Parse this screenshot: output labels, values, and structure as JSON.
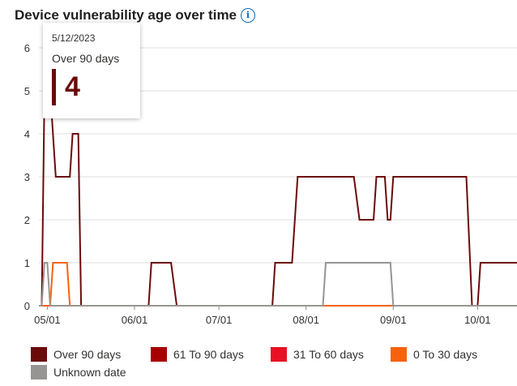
{
  "header": {
    "title": "Device vulnerability age over time",
    "info_icon": "info-icon"
  },
  "chart_data": {
    "type": "line",
    "title": "Device vulnerability age over time",
    "xlabel": "",
    "ylabel": "",
    "x_range": [
      "2023-04-28",
      "2023-10-15"
    ],
    "ylim": [
      0,
      6
    ],
    "y_ticks": [
      0,
      1,
      2,
      3,
      4,
      5,
      6
    ],
    "x_ticks": [
      {
        "label": "05/01",
        "date": "2023-05-01"
      },
      {
        "label": "06/01",
        "date": "2023-06-01"
      },
      {
        "label": "07/01",
        "date": "2023-07-01"
      },
      {
        "label": "08/01",
        "date": "2023-08-01"
      },
      {
        "label": "09/01",
        "date": "2023-09-01"
      },
      {
        "label": "10/01",
        "date": "2023-10-01"
      }
    ],
    "grid": "horizontal",
    "legend_position": "bottom",
    "series": [
      {
        "name": "Over 90 days",
        "color": "#6b0a0a",
        "points": [
          [
            "2023-04-28",
            0
          ],
          [
            "2023-04-29",
            0
          ],
          [
            "2023-04-30",
            5
          ],
          [
            "2023-05-02",
            5
          ],
          [
            "2023-05-04",
            3
          ],
          [
            "2023-05-09",
            3
          ],
          [
            "2023-05-10",
            4
          ],
          [
            "2023-05-12",
            4
          ],
          [
            "2023-05-13",
            0
          ],
          [
            "2023-06-06",
            0
          ],
          [
            "2023-06-07",
            1
          ],
          [
            "2023-06-14",
            1
          ],
          [
            "2023-06-16",
            0
          ],
          [
            "2023-07-20",
            0
          ],
          [
            "2023-07-21",
            1
          ],
          [
            "2023-07-27",
            1
          ],
          [
            "2023-07-29",
            3
          ],
          [
            "2023-08-18",
            3
          ],
          [
            "2023-08-20",
            2
          ],
          [
            "2023-08-25",
            2
          ],
          [
            "2023-08-26",
            3
          ],
          [
            "2023-08-29",
            3
          ],
          [
            "2023-08-30",
            2
          ],
          [
            "2023-08-31",
            2
          ],
          [
            "2023-09-01",
            3
          ],
          [
            "2023-09-27",
            3
          ],
          [
            "2023-09-29",
            0
          ],
          [
            "2023-10-01",
            0
          ],
          [
            "2023-10-02",
            1
          ],
          [
            "2023-10-15",
            1
          ]
        ]
      },
      {
        "name": "61 To 90 days",
        "color": "#a80000",
        "points": [
          [
            "2023-04-28",
            0
          ],
          [
            "2023-10-15",
            0
          ]
        ]
      },
      {
        "name": "31 To 60 days",
        "color": "#e81123",
        "points": [
          [
            "2023-04-28",
            0
          ],
          [
            "2023-10-15",
            0
          ]
        ]
      },
      {
        "name": "0 To 30 days",
        "color": "#f7630c",
        "points": [
          [
            "2023-04-28",
            0
          ],
          [
            "2023-05-02",
            0
          ],
          [
            "2023-05-03",
            1
          ],
          [
            "2023-05-08",
            1
          ],
          [
            "2023-05-09",
            0
          ],
          [
            "2023-10-15",
            0
          ]
        ]
      },
      {
        "name": "Unknown date",
        "color": "#979593",
        "points": [
          [
            "2023-04-28",
            0
          ],
          [
            "2023-04-29",
            0
          ],
          [
            "2023-04-30",
            1
          ],
          [
            "2023-05-01",
            1
          ],
          [
            "2023-05-02",
            0
          ],
          [
            "2023-08-07",
            0
          ],
          [
            "2023-08-08",
            1
          ],
          [
            "2023-08-31",
            1
          ],
          [
            "2023-09-01",
            0
          ],
          [
            "2023-10-15",
            0
          ]
        ]
      }
    ]
  },
  "tooltip": {
    "date": "5/12/2023",
    "series": "Over 90 days",
    "value": "4"
  },
  "legend": [
    {
      "label": "Over 90 days",
      "color": "#6b0a0a"
    },
    {
      "label": "61 To 90 days",
      "color": "#a80000"
    },
    {
      "label": "31 To 60 days",
      "color": "#e81123"
    },
    {
      "label": "0 To 30 days",
      "color": "#f7630c"
    },
    {
      "label": "Unknown date",
      "color": "#979593"
    }
  ]
}
